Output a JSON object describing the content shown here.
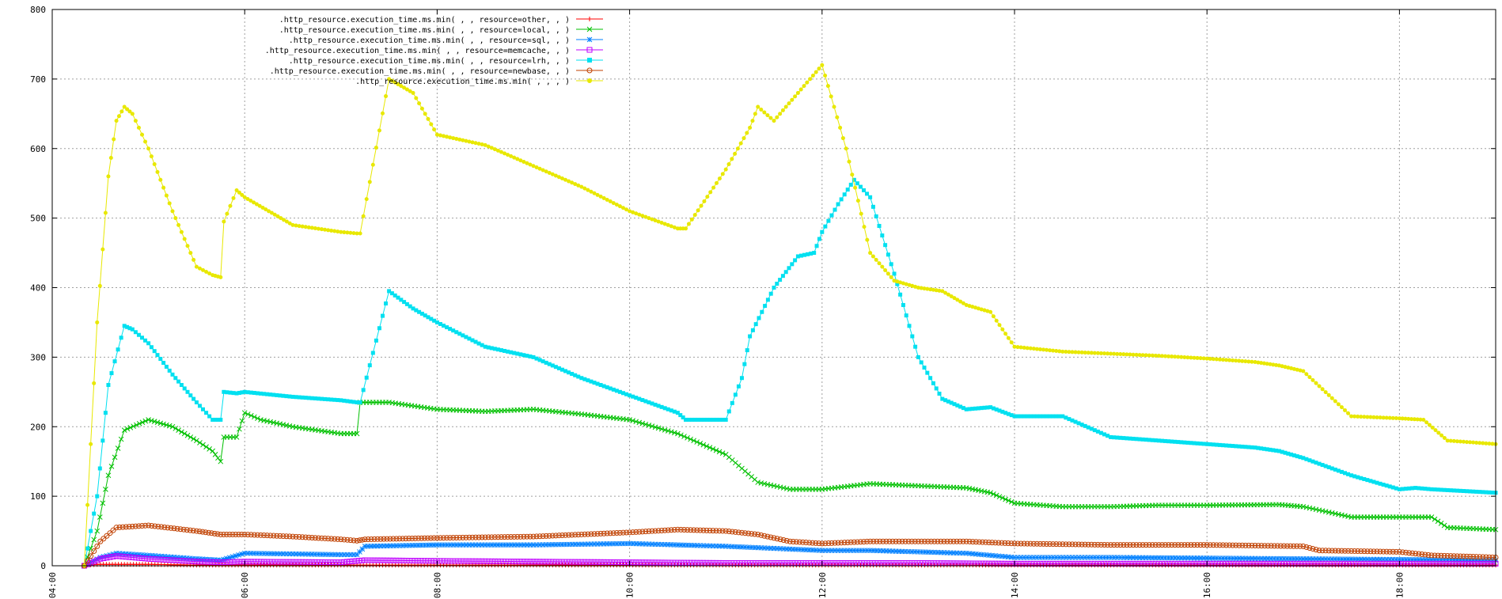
{
  "chart_data": {
    "type": "line",
    "title": "",
    "xlabel": "",
    "ylabel": "",
    "ylim": [
      0,
      800
    ],
    "xlim": [
      "04:00",
      "19:00"
    ],
    "grid": true,
    "legend_placement": "top-left",
    "y_ticks": [
      0,
      100,
      200,
      300,
      400,
      500,
      600,
      700,
      800
    ],
    "x_ticks": [
      "04:00",
      "06:00",
      "08:00",
      "10:00",
      "12:00",
      "14:00",
      "16:00",
      "18:00"
    ],
    "series": [
      {
        "name": ".http_resource.execution_time.ms.min(           ,           , resource=other,           ,           )",
        "color": "#ff0000",
        "marker": "plus",
        "x": [
          "04:20",
          "04:30",
          "04:45",
          "05:00",
          "05:30",
          "06:00",
          "07:00",
          "08:00",
          "09:00",
          "10:00",
          "11:00",
          "12:00",
          "13:00",
          "14:00",
          "15:00",
          "16:00",
          "17:00",
          "18:00",
          "19:00"
        ],
        "y": [
          1,
          2,
          2,
          2,
          1,
          1,
          1,
          1,
          1,
          1,
          1,
          1,
          1,
          1,
          1,
          1,
          1,
          1,
          1
        ]
      },
      {
        "name": ".http_resource.execution_time.ms.min(           ,           , resource=local,           ,           )",
        "color": "#00c000",
        "marker": "x",
        "x": [
          "04:20",
          "04:28",
          "04:35",
          "04:45",
          "05:00",
          "05:15",
          "05:30",
          "05:40",
          "05:45",
          "05:47",
          "05:55",
          "06:00",
          "06:10",
          "06:30",
          "07:00",
          "07:10",
          "07:12",
          "07:30",
          "08:00",
          "08:30",
          "09:00",
          "09:30",
          "10:00",
          "10:30",
          "11:00",
          "11:20",
          "11:40",
          "12:00",
          "12:30",
          "13:00",
          "13:30",
          "13:45",
          "14:00",
          "14:30",
          "15:00",
          "15:30",
          "16:00",
          "16:45",
          "17:00",
          "17:30",
          "18:00",
          "18:20",
          "18:30",
          "19:00"
        ],
        "y": [
          0,
          50,
          130,
          195,
          210,
          200,
          180,
          165,
          150,
          185,
          185,
          220,
          210,
          200,
          190,
          190,
          235,
          235,
          225,
          222,
          225,
          218,
          210,
          190,
          160,
          120,
          110,
          110,
          118,
          115,
          112,
          105,
          90,
          85,
          85,
          87,
          87,
          88,
          85,
          70,
          70,
          70,
          55,
          52
        ]
      },
      {
        "name": ".http_resource.execution_time.ms.min(           ,           , resource=sql,           ,           )",
        "color": "#0080ff",
        "marker": "star",
        "x": [
          "04:20",
          "04:30",
          "04:40",
          "05:00",
          "05:30",
          "05:45",
          "06:00",
          "06:30",
          "07:00",
          "07:10",
          "07:15",
          "08:00",
          "09:00",
          "10:00",
          "10:30",
          "11:00",
          "11:30",
          "12:00",
          "12:30",
          "13:00",
          "13:30",
          "14:00",
          "15:00",
          "16:00",
          "17:00",
          "18:00",
          "19:00"
        ],
        "y": [
          0,
          12,
          18,
          15,
          10,
          8,
          18,
          17,
          16,
          16,
          28,
          30,
          30,
          32,
          30,
          28,
          25,
          22,
          22,
          20,
          18,
          12,
          12,
          11,
          10,
          9,
          8
        ]
      },
      {
        "name": ".http_resource.execution_time.ms.min(           ,           , resource=memcache,           ,           )",
        "color": "#c000ff",
        "marker": "square-open",
        "x": [
          "04:20",
          "04:30",
          "04:40",
          "05:00",
          "05:30",
          "05:45",
          "06:00",
          "07:00",
          "07:15",
          "08:00",
          "09:00",
          "10:00",
          "11:00",
          "12:00",
          "13:00",
          "14:00",
          "15:00",
          "16:00",
          "17:00",
          "18:00",
          "19:00"
        ],
        "y": [
          0,
          10,
          14,
          10,
          6,
          5,
          6,
          5,
          8,
          7,
          6,
          5,
          4,
          4,
          4,
          3,
          3,
          3,
          3,
          3,
          3
        ]
      },
      {
        "name": ".http_resource.execution_time.ms.min(           ,           , resource=lrh,           ,           )",
        "color": "#00e0f0",
        "marker": "square",
        "x": [
          "04:20",
          "04:28",
          "04:35",
          "04:45",
          "04:50",
          "05:00",
          "05:15",
          "05:30",
          "05:40",
          "05:45",
          "05:47",
          "05:55",
          "06:00",
          "06:30",
          "07:00",
          "07:10",
          "07:12",
          "07:30",
          "07:45",
          "08:00",
          "08:30",
          "09:00",
          "09:30",
          "10:00",
          "10:30",
          "10:35",
          "11:00",
          "11:10",
          "11:15",
          "11:30",
          "11:45",
          "11:55",
          "12:00",
          "12:10",
          "12:20",
          "12:30",
          "12:45",
          "13:00",
          "13:15",
          "13:30",
          "13:45",
          "14:00",
          "14:30",
          "15:00",
          "15:30",
          "16:00",
          "16:30",
          "16:45",
          "17:00",
          "17:30",
          "18:00",
          "18:10",
          "18:20",
          "19:00"
        ],
        "y": [
          0,
          100,
          260,
          345,
          340,
          320,
          275,
          235,
          210,
          210,
          250,
          248,
          250,
          243,
          238,
          235,
          235,
          395,
          370,
          350,
          315,
          300,
          270,
          245,
          220,
          210,
          210,
          270,
          330,
          400,
          445,
          450,
          480,
          520,
          555,
          530,
          420,
          300,
          240,
          225,
          228,
          215,
          215,
          185,
          180,
          175,
          170,
          165,
          155,
          130,
          110,
          112,
          110,
          105
        ]
      },
      {
        "name": ".http_resource.execution_time.ms.min(           ,           , resource=newbase,           ,           )",
        "color": "#c04000",
        "marker": "circle-open",
        "x": [
          "04:20",
          "04:30",
          "04:40",
          "05:00",
          "05:30",
          "05:45",
          "06:00",
          "06:30",
          "07:00",
          "07:10",
          "07:15",
          "08:00",
          "09:00",
          "10:00",
          "10:30",
          "11:00",
          "11:20",
          "11:40",
          "12:00",
          "12:30",
          "13:00",
          "13:30",
          "14:00",
          "15:00",
          "16:00",
          "17:00",
          "17:10",
          "18:00",
          "18:20",
          "19:00"
        ],
        "y": [
          0,
          35,
          55,
          58,
          50,
          45,
          45,
          42,
          38,
          36,
          38,
          40,
          42,
          48,
          52,
          50,
          45,
          35,
          32,
          35,
          35,
          35,
          32,
          30,
          30,
          28,
          22,
          20,
          15,
          12
        ]
      },
      {
        "name": ".http_resource.execution_time.ms.min(           ,           ,           ,           )",
        "color": "#e8e800",
        "marker": "circle",
        "x": [
          "04:20",
          "04:28",
          "04:35",
          "04:40",
          "04:45",
          "04:50",
          "05:00",
          "05:15",
          "05:30",
          "05:40",
          "05:45",
          "05:47",
          "05:55",
          "06:00",
          "06:15",
          "06:30",
          "07:00",
          "07:10",
          "07:12",
          "07:30",
          "07:45",
          "08:00",
          "08:30",
          "09:00",
          "09:30",
          "10:00",
          "10:30",
          "10:35",
          "11:00",
          "11:15",
          "11:20",
          "11:30",
          "11:45",
          "12:00",
          "12:15",
          "12:30",
          "12:45",
          "13:00",
          "13:15",
          "13:30",
          "13:45",
          "14:00",
          "14:30",
          "15:00",
          "15:30",
          "16:00",
          "16:30",
          "16:45",
          "17:00",
          "17:30",
          "18:00",
          "18:15",
          "18:30",
          "19:00"
        ],
        "y": [
          0,
          350,
          560,
          640,
          660,
          650,
          600,
          510,
          430,
          418,
          415,
          495,
          540,
          530,
          510,
          490,
          480,
          478,
          478,
          700,
          680,
          620,
          605,
          575,
          545,
          510,
          485,
          485,
          570,
          630,
          660,
          640,
          680,
          720,
          600,
          450,
          410,
          400,
          395,
          375,
          365,
          315,
          308,
          305,
          302,
          298,
          293,
          288,
          280,
          215,
          212,
          210,
          180,
          175
        ]
      }
    ]
  }
}
